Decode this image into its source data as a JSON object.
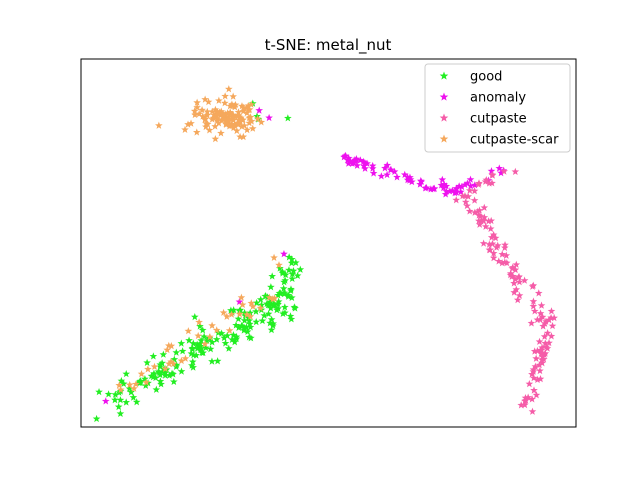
{
  "chart_data": {
    "type": "scatter",
    "title": "t-SNE: metal_nut",
    "xlabel": "",
    "ylabel": "",
    "xlim": [
      0,
      100
    ],
    "ylim": [
      0,
      100
    ],
    "axes_ticks": false,
    "grid": false,
    "legend": "top-right",
    "marker": "star",
    "series": [
      {
        "name": "good",
        "color": "#22ee22",
        "clusters": [
          {
            "kind": "band",
            "from": [
              6,
              8
            ],
            "to": [
              43,
              35
            ],
            "spread": 4,
            "n": 160
          },
          {
            "kind": "band",
            "from": [
              38,
              30
            ],
            "to": [
              43,
              45
            ],
            "spread": 2,
            "n": 30
          },
          {
            "kind": "blob",
            "center": [
              37,
              86
            ],
            "sx": 5,
            "sy": 3,
            "n": 4
          }
        ]
      },
      {
        "name": "anomaly",
        "color": "#ee11ee",
        "clusters": [
          {
            "kind": "band",
            "from": [
              53,
              73
            ],
            "to": [
              75,
              64
            ],
            "spread": 1.2,
            "n": 55
          },
          {
            "kind": "band",
            "from": [
              75,
              64
            ],
            "to": [
              86,
              70
            ],
            "spread": 1.2,
            "n": 18
          },
          {
            "kind": "points",
            "xy": [
              [
                5,
                7
              ],
              [
                32,
                34
              ],
              [
                41,
                47
              ],
              [
                38,
                84
              ],
              [
                36,
                86
              ]
            ]
          }
        ]
      },
      {
        "name": "cutpaste",
        "color": "#f55ca8",
        "clusters": [
          {
            "kind": "band",
            "from": [
              78,
              62
            ],
            "to": [
              86,
              44
            ],
            "spread": 1.8,
            "n": 40
          },
          {
            "kind": "band",
            "from": [
              86,
              44
            ],
            "to": [
              95,
              27
            ],
            "spread": 1.8,
            "n": 40
          },
          {
            "kind": "band",
            "from": [
              94,
              25
            ],
            "to": [
              90,
              5
            ],
            "spread": 1.2,
            "n": 40
          },
          {
            "kind": "band",
            "from": [
              76,
              62
            ],
            "to": [
              86,
              70
            ],
            "spread": 1.5,
            "n": 15
          }
        ]
      },
      {
        "name": "cutpaste-scar",
        "color": "#f5a85c",
        "clusters": [
          {
            "kind": "blob",
            "center": [
              29,
              84
            ],
            "sx": 6,
            "sy": 4.5,
            "n": 120
          },
          {
            "kind": "band",
            "from": [
              7,
              9
            ],
            "to": [
              40,
              38
            ],
            "spread": 3,
            "n": 40
          },
          {
            "kind": "points",
            "xy": [
              [
                39,
                46
              ],
              [
                40,
                44
              ]
            ]
          }
        ]
      }
    ]
  }
}
